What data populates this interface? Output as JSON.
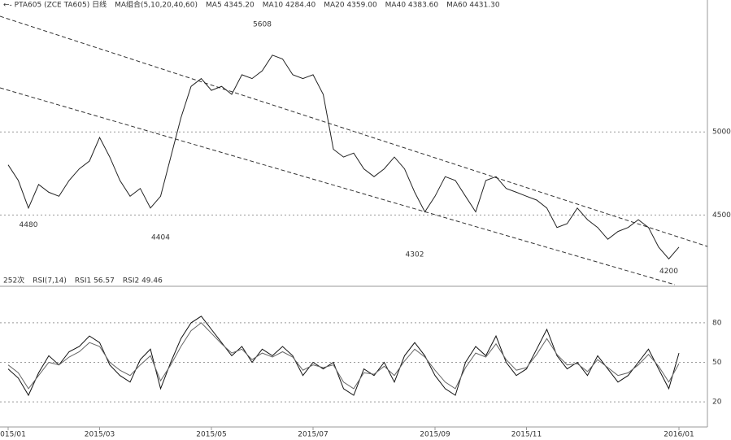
{
  "chart_data": [
    {
      "type": "line",
      "header": [
        "←- PTA605 (ZCE TA605) 日线",
        "MA组合(5,10,20,40,60)",
        "MA5 4345.20",
        "MA10 4284.40",
        "MA20 4359.00",
        "MA40 4383.60",
        "MA60 4431.30"
      ],
      "categories": [
        "015/01",
        null,
        null,
        null,
        null,
        null,
        null,
        null,
        null,
        "2015/03",
        null,
        null,
        null,
        null,
        null,
        null,
        null,
        null,
        null,
        null,
        "2015/05",
        null,
        null,
        null,
        null,
        null,
        null,
        null,
        null,
        null,
        "2015/07",
        null,
        null,
        null,
        null,
        null,
        null,
        null,
        null,
        null,
        null,
        null,
        "2015/09",
        null,
        null,
        null,
        null,
        null,
        null,
        null,
        null,
        "2015/11",
        null,
        null,
        null,
        null,
        null,
        null,
        null,
        null,
        null,
        null,
        null,
        null,
        null,
        null,
        "2016/01"
      ],
      "series": [
        {
          "color": "#222222",
          "values": [
            4802,
            4708,
            4542,
            4684,
            4637,
            4613,
            4708,
            4778,
            4825,
            4967,
            4849,
            4708,
            4613,
            4660,
            4542,
            4613,
            4849,
            5085,
            5274,
            5321,
            5250,
            5274,
            5226,
            5344,
            5321,
            5368,
            5462,
            5439,
            5344,
            5321,
            5344,
            5226,
            4896,
            4849,
            4873,
            4778,
            4731,
            4778,
            4849,
            4778,
            4637,
            4519,
            4613,
            4731,
            4708,
            4613,
            4519,
            4708,
            4731,
            4660,
            4637,
            4613,
            4590,
            4542,
            4425,
            4448,
            4542,
            4472,
            4425,
            4354,
            4401,
            4425,
            4472,
            4425,
            4307,
            4236,
            4307
          ]
        }
      ],
      "annotations": [
        {
          "value": 4480,
          "x": 2
        },
        {
          "value": 4404,
          "x": 15
        },
        {
          "value": 5608,
          "x": 25
        },
        {
          "value": 4302,
          "x": 40
        },
        {
          "value": 4200,
          "x": 65
        }
      ],
      "ylim": [
        4130,
        5745
      ],
      "yticks": [
        4500,
        5000
      ],
      "grid": true
    },
    {
      "type": "line",
      "header": [
        "252次",
        "RSI(7,14)",
        "RSI1 56.57",
        "RSI2 49.46"
      ],
      "series": [
        {
          "color": "#111111",
          "values": [
            45,
            38,
            25,
            42,
            55,
            48,
            58,
            62,
            70,
            65,
            48,
            40,
            35,
            52,
            60,
            30,
            50,
            68,
            80,
            85,
            75,
            65,
            55,
            62,
            50,
            60,
            55,
            62,
            55,
            40,
            50,
            45,
            50,
            30,
            25,
            45,
            40,
            50,
            35,
            55,
            65,
            55,
            40,
            30,
            25,
            50,
            62,
            55,
            70,
            50,
            40,
            45,
            60,
            75,
            55,
            45,
            50,
            40,
            55,
            45,
            35,
            40,
            50,
            60,
            45,
            30,
            57
          ]
        },
        {
          "color": "#666666",
          "values": [
            48,
            42,
            30,
            40,
            50,
            48,
            54,
            58,
            65,
            62,
            50,
            44,
            40,
            48,
            55,
            36,
            48,
            62,
            74,
            80,
            72,
            64,
            57,
            60,
            52,
            57,
            54,
            58,
            54,
            44,
            48,
            46,
            48,
            35,
            30,
            42,
            41,
            47,
            40,
            51,
            60,
            54,
            44,
            35,
            30,
            46,
            57,
            54,
            64,
            52,
            44,
            46,
            56,
            68,
            56,
            48,
            49,
            43,
            52,
            46,
            40,
            42,
            48,
            56,
            47,
            35,
            49
          ]
        }
      ],
      "ylim": [
        4,
        104
      ],
      "yticks": [
        20,
        50,
        80
      ],
      "grid": true
    }
  ]
}
